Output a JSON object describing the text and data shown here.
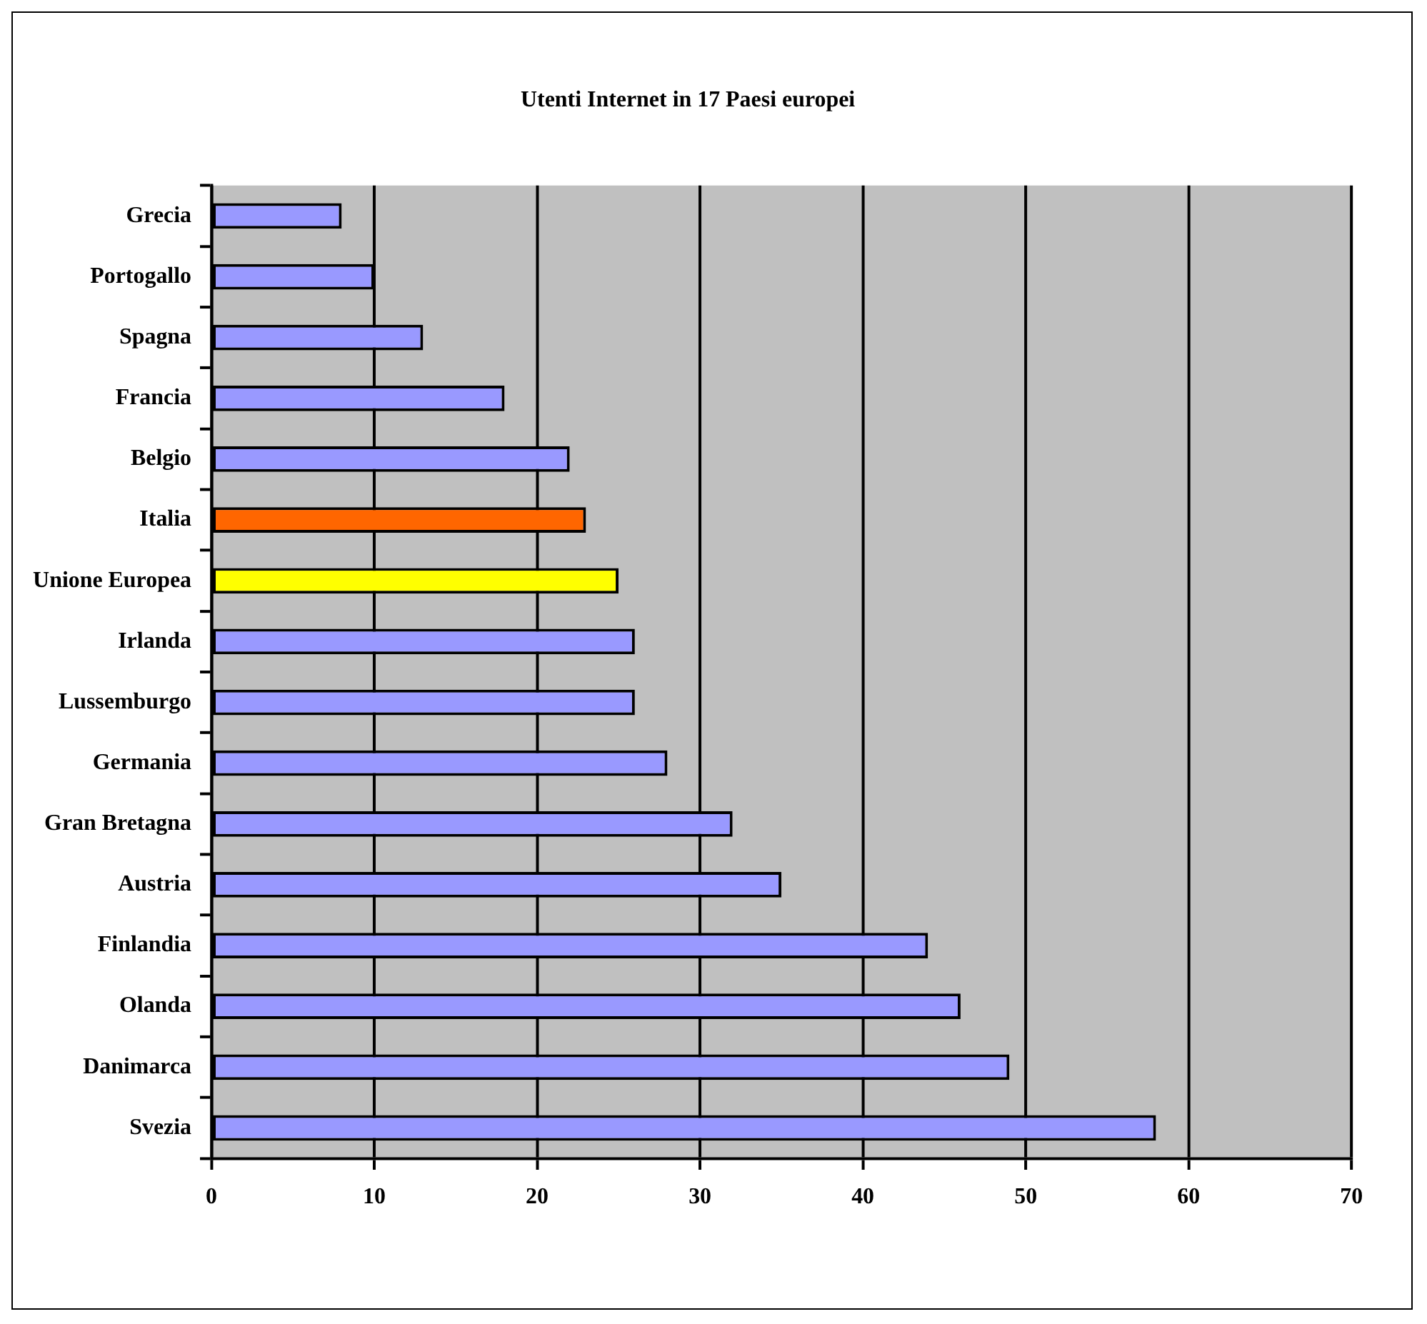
{
  "chart_data": {
    "type": "bar",
    "orientation": "horizontal",
    "title": "Utenti Internet in 17 Paesi europei",
    "categories": [
      "Grecia",
      "Portogallo",
      "Spagna",
      "Francia",
      "Belgio",
      "Italia",
      "Unione Europea",
      "Irlanda",
      "Lussemburgo",
      "Germania",
      "Gran Bretagna",
      "Austria",
      "Finlandia",
      "Olanda",
      "Danimarca",
      "Svezia"
    ],
    "values": [
      8,
      10,
      13,
      18,
      22,
      23,
      25,
      26,
      26,
      28,
      32,
      35,
      44,
      46,
      49,
      58
    ],
    "colors": [
      "#9999ff",
      "#9999ff",
      "#9999ff",
      "#9999ff",
      "#9999ff",
      "#ff6600",
      "#ffff00",
      "#9999ff",
      "#9999ff",
      "#9999ff",
      "#9999ff",
      "#9999ff",
      "#9999ff",
      "#9999ff",
      "#9999ff",
      "#9999ff"
    ],
    "xlim": [
      0,
      70
    ],
    "xticks": [
      0,
      10,
      20,
      30,
      40,
      50,
      60,
      70
    ],
    "grid": "x",
    "legend": false
  }
}
